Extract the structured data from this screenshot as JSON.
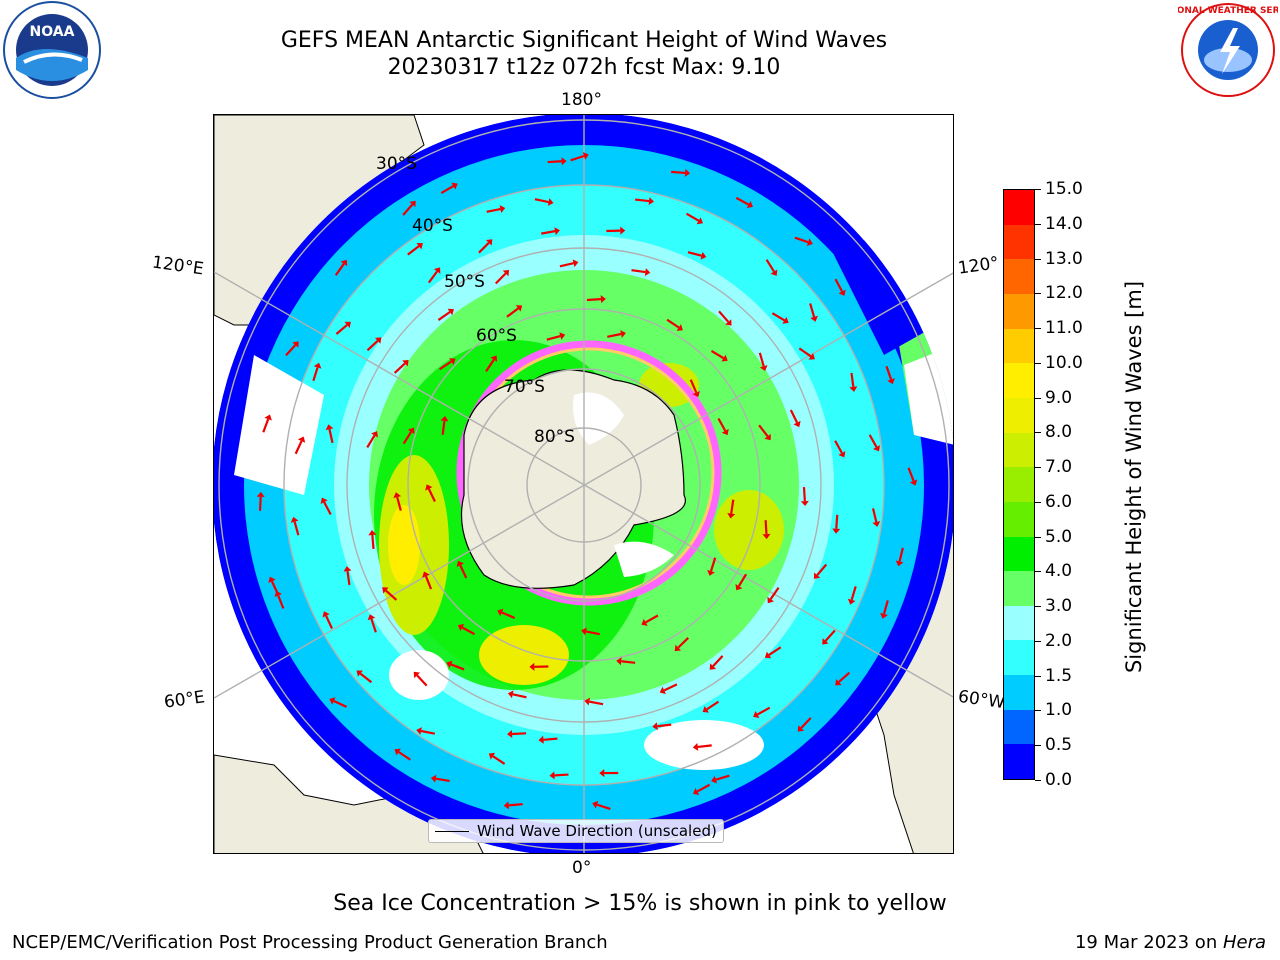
{
  "header": {
    "title_line1": "GEFS MEAN Antarctic Significant Height of Wind Waves",
    "title_line2": "20230317 t12z 072h fcst   Max: 9.10"
  },
  "logos": {
    "left": {
      "icon": "noaa-logo",
      "text": "NOAA"
    },
    "right": {
      "icon": "national-weather-service-logo",
      "text": "NATIONAL WEATHER SERVICE"
    }
  },
  "map": {
    "lon_labels": {
      "top": "180°",
      "bottom": "0°",
      "upper_left": "120°E",
      "upper_right": "120°",
      "lower_left": "60°E",
      "lower_right": "60°W"
    },
    "lat_labels": [
      "30°S",
      "40°S",
      "50°S",
      "60°S",
      "70°S",
      "80°S"
    ],
    "legend": "Wind Wave Direction (unscaled)",
    "land_color": "#eeecdc",
    "ocean_background": "#ffffff"
  },
  "colorbar": {
    "label": "Significant Height of Wind Waves [m]",
    "ticks": [
      "0.0",
      "0.5",
      "1.0",
      "1.5",
      "2.0",
      "3.0",
      "4.0",
      "5.0",
      "6.0",
      "7.0",
      "8.0",
      "9.0",
      "10.0",
      "11.0",
      "12.0",
      "13.0",
      "14.0",
      "15.0"
    ],
    "colors": [
      "#0000ff",
      "#0066ff",
      "#00ccff",
      "#33ffff",
      "#99ffff",
      "#66ff66",
      "#00ee00",
      "#66ee00",
      "#99ee00",
      "#ccee00",
      "#eeee00",
      "#ffee00",
      "#ffcc00",
      "#ff9900",
      "#ff6600",
      "#ff3300",
      "#ff0000"
    ]
  },
  "caption": "Sea Ice Concentration > 15% is shown in pink to yellow",
  "footer": {
    "left": "NCEP/EMC/Verification Post Processing Product Generation Branch",
    "right_date": "19 Mar 2023 on ",
    "right_host": "Hera"
  }
}
